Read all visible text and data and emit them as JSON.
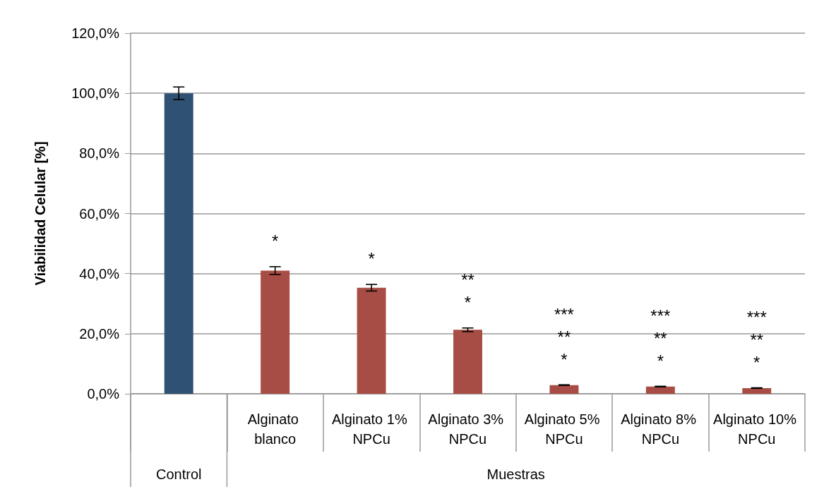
{
  "chart_data": {
    "type": "bar",
    "ylabel": "Viabilidad Celular [%]",
    "categories": [
      null,
      "Alginato blanco",
      "Alginato 1% NPCu",
      "Alginato 3% NPCu",
      "Alginato 5% NPCu",
      "Alginato 8% NPCu",
      "Alginato 10% NPCu"
    ],
    "values": [
      100,
      41.0,
      35.3,
      21.3,
      2.9,
      2.4,
      1.9
    ],
    "errors": [
      2.1,
      1.3,
      1.1,
      0.6,
      0.1,
      0.1,
      0.1
    ],
    "colors": [
      "#2f5173",
      "#a84d45",
      "#a84d45",
      "#a84d45",
      "#a84d45",
      "#a84d45",
      "#a84d45"
    ],
    "ylim": [
      0,
      120
    ],
    "yticks": [
      {
        "value": 0,
        "label": "0,0%"
      },
      {
        "value": 20,
        "label": "20,0%"
      },
      {
        "value": 40,
        "label": "40,0%"
      },
      {
        "value": 60,
        "label": "60,0%"
      },
      {
        "value": 80,
        "label": "80,0%"
      },
      {
        "value": 100,
        "label": "100,0%"
      },
      {
        "value": 120,
        "label": "120,0%"
      }
    ],
    "grid": "y",
    "annotations": [
      "Control",
      "Muestras",
      "*",
      "*",
      "**",
      "*",
      "***",
      "**",
      "*",
      "***",
      "**",
      "*",
      "***",
      "**",
      "*"
    ]
  }
}
